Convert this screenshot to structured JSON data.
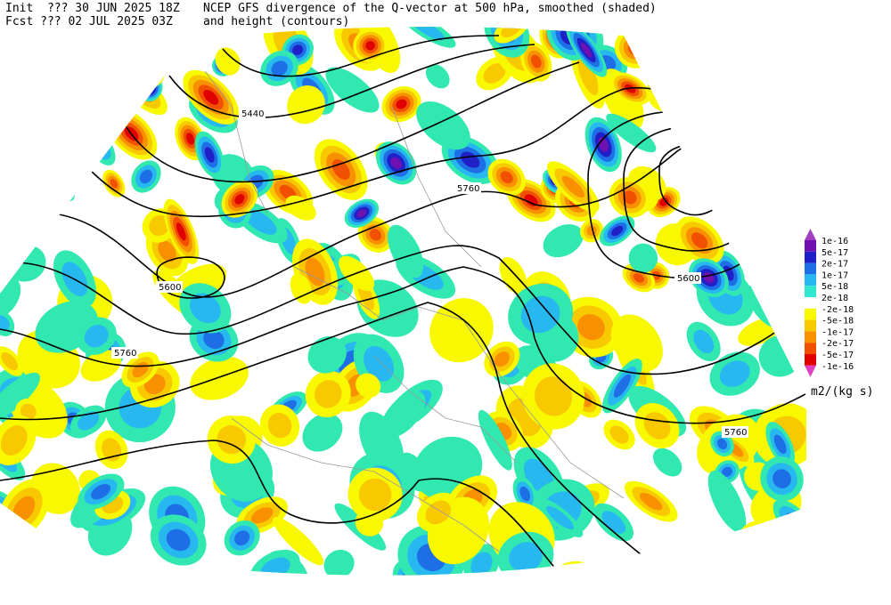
{
  "header": {
    "init": "Init  ??? 30 JUN 2025 18Z",
    "forecast": "Fcst ??? 02 JUL 2025 03Z",
    "title": "NCEP GFS divergence of the Q-vector at 500 hPa, smoothed (shaded)",
    "subtitle": "and height (contours)"
  },
  "contour_labels": [
    "5440",
    "5600",
    "5760",
    "5760",
    "5600",
    "5760"
  ],
  "colorbar": {
    "labels": [
      "1e-16",
      "5e-17",
      "2e-17",
      "1e-17",
      "5e-18",
      "2e-18",
      "-2e-18",
      "-5e-18",
      "-1e-17",
      "-2e-17",
      "-5e-17",
      "-1e-16"
    ],
    "units": "m2/(kg s)"
  }
}
